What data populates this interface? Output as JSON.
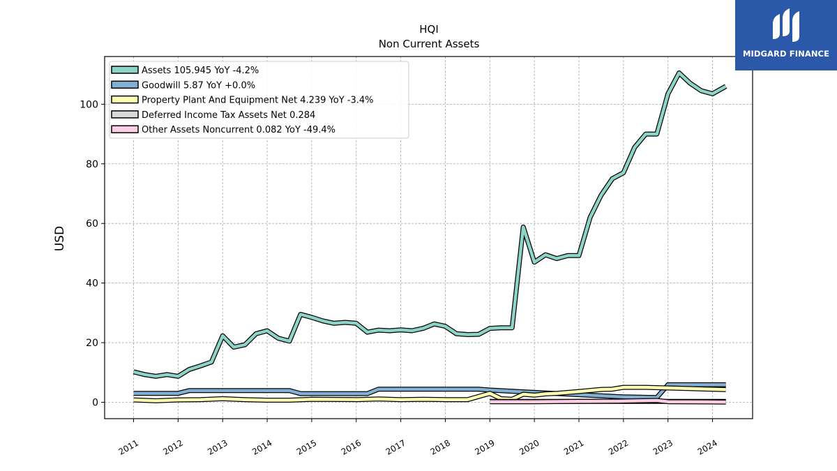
{
  "chart_data": {
    "type": "line",
    "title": "HQI",
    "subtitle": "Non Current  Assets",
    "ylabel": "USD",
    "xlabel": "",
    "ylim": [
      -5.5,
      116
    ],
    "xlim": [
      2010.35,
      2024.9
    ],
    "yticks": [
      0,
      20,
      40,
      60,
      80,
      100
    ],
    "xticks": [
      "2011",
      "2012",
      "2013",
      "2014",
      "2015",
      "2016",
      "2017",
      "2018",
      "2019",
      "2020",
      "2021",
      "2022",
      "2023",
      "2024"
    ],
    "grid": true,
    "legend_position": "top-left",
    "series": [
      {
        "name": "Assets  105.945 YoY -4.2%",
        "color": "#8dd3c7",
        "x": [
          2011.0,
          2011.25,
          2011.5,
          2011.75,
          2012.0,
          2012.25,
          2012.5,
          2012.75,
          2013.0,
          2013.25,
          2013.5,
          2013.75,
          2014.0,
          2014.25,
          2014.5,
          2014.75,
          2015.0,
          2015.25,
          2015.5,
          2015.75,
          2016.0,
          2016.25,
          2016.5,
          2016.75,
          2017.0,
          2017.25,
          2017.5,
          2017.75,
          2018.0,
          2018.25,
          2018.5,
          2018.75,
          2019.0,
          2019.25,
          2019.5,
          2019.75,
          2020.0,
          2020.25,
          2020.5,
          2020.75,
          2021.0,
          2021.25,
          2021.5,
          2021.75,
          2022.0,
          2022.25,
          2022.5,
          2022.75,
          2023.0,
          2023.25,
          2023.5,
          2023.75,
          2024.0,
          2024.3
        ],
        "values": [
          10.2,
          9.3,
          8.7,
          9.3,
          8.7,
          11.0,
          12.2,
          13.5,
          22.3,
          18.5,
          19.3,
          23.0,
          24.0,
          21.5,
          20.5,
          29.5,
          28.5,
          27.3,
          26.5,
          26.8,
          26.5,
          23.5,
          24.2,
          24.0,
          24.3,
          24.0,
          24.8,
          26.3,
          25.5,
          23.0,
          22.7,
          22.8,
          24.8,
          25.0,
          25.0,
          58.8,
          47.0,
          49.5,
          48.2,
          49.2,
          49.2,
          62.0,
          69.5,
          75.0,
          77.0,
          85.5,
          90.0,
          90.0,
          103.5,
          110.5,
          107.0,
          104.5,
          103.5,
          106.0
        ]
      },
      {
        "name": "Goodwill  5.87 YoY +0.0%",
        "color": "#80b1d3",
        "x": [
          2011.0,
          2012.0,
          2012.25,
          2014.5,
          2014.75,
          2016.25,
          2016.5,
          2018.75,
          2019.0,
          2020.0,
          2022.0,
          2022.75,
          2023.0,
          2024.3
        ],
        "values": [
          3.0,
          3.0,
          3.9,
          3.9,
          2.9,
          2.9,
          4.4,
          4.4,
          4.1,
          3.3,
          1.8,
          1.6,
          5.87,
          5.87
        ]
      },
      {
        "name": "Property Plant And Equipment Net  4.239 YoY -3.4%",
        "color": "#ffffb3",
        "x": [
          2011.0,
          2011.5,
          2012.0,
          2012.5,
          2013.0,
          2013.5,
          2014.0,
          2014.5,
          2015.0,
          2016.0,
          2016.5,
          2017.0,
          2017.5,
          2018.0,
          2018.5,
          2019.0,
          2019.25,
          2019.5,
          2019.75,
          2020.0,
          2020.25,
          2020.5,
          2021.0,
          2021.5,
          2021.75,
          2022.0,
          2022.5,
          2023.0,
          2023.5,
          2024.3
        ],
        "values": [
          0.8,
          0.5,
          0.8,
          0.9,
          1.2,
          0.9,
          0.7,
          0.7,
          1.0,
          0.9,
          1.1,
          0.9,
          1.0,
          0.9,
          0.9,
          3.0,
          1.2,
          1.0,
          2.7,
          2.4,
          2.8,
          3.0,
          3.6,
          4.3,
          4.4,
          5.0,
          5.0,
          4.8,
          4.6,
          4.239
        ]
      },
      {
        "name": "Deferred Income Tax Assets Net  0.284",
        "color": "#d9d9d9",
        "x": [
          2019.0,
          2024.3
        ],
        "values": [
          0.284,
          0.284
        ]
      },
      {
        "name": "Other Assets Noncurrent  0.082 YoY -49.4%",
        "color": "#fccde5",
        "x": [
          2019.0,
          2019.75,
          2020.0,
          2021.0,
          2022.0,
          2022.75,
          2023.0,
          2024.3
        ],
        "values": [
          0.2,
          0.2,
          0.2,
          0.3,
          0.4,
          0.6,
          0.2,
          0.082
        ]
      }
    ]
  },
  "logo": {
    "text": "MIDGARD FINANCE",
    "background": "#2b58a8"
  }
}
